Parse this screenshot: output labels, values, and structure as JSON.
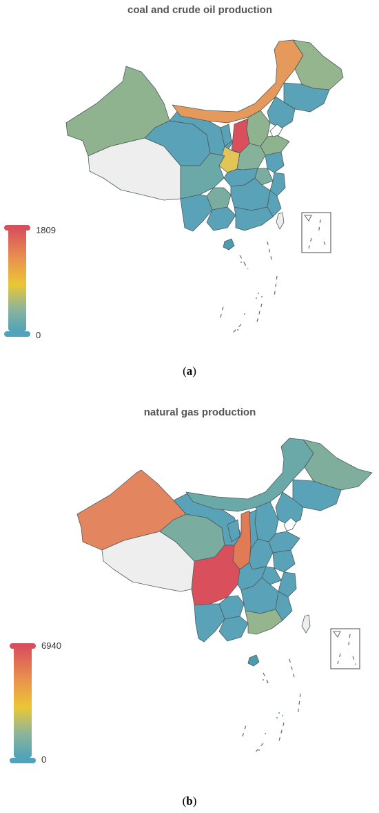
{
  "maps": [
    {
      "title": "coal and crude oil production",
      "caption_letter": "a",
      "visual_map": {
        "max": "1809",
        "min": "0"
      },
      "colors": {
        "high": "#d94e5d",
        "mid": "#eac736",
        "low": "#50a3ba",
        "nodata": "#eeeeee"
      }
    },
    {
      "title": "natural gas production",
      "caption_letter": "b",
      "visual_map": {
        "max": "6940",
        "min": "0"
      },
      "colors": {
        "high": "#d94e5d",
        "mid": "#eac736",
        "low": "#50a3ba",
        "nodata": "#eeeeee"
      }
    }
  ]
}
